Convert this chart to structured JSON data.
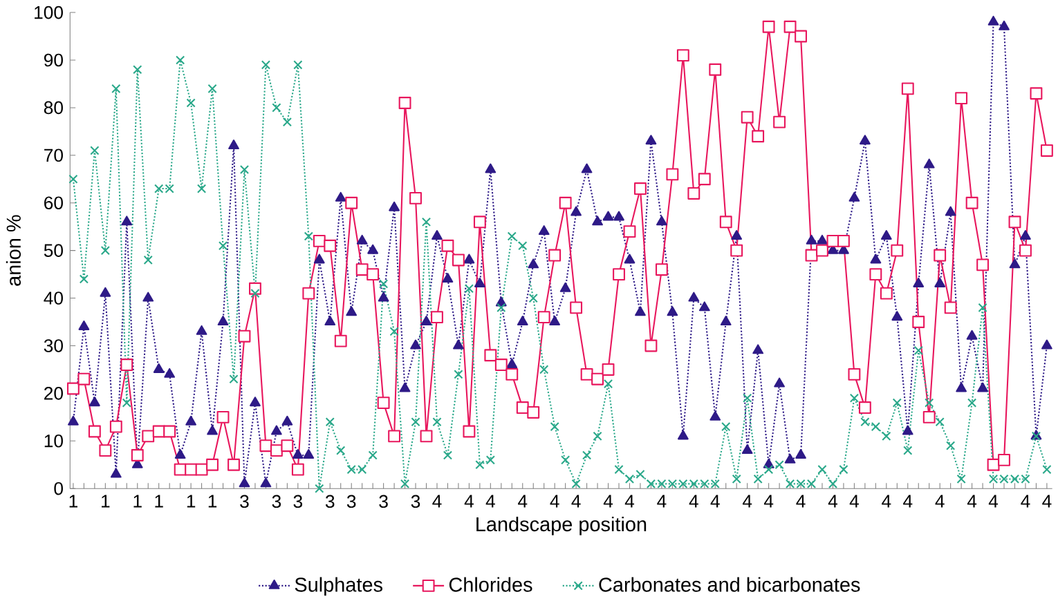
{
  "chart_data": {
    "type": "line",
    "xlabel": "Landscape position",
    "ylabel": "anion %",
    "ylim": [
      0,
      100
    ],
    "yticks": [
      0,
      10,
      20,
      30,
      40,
      50,
      60,
      70,
      80,
      90,
      100
    ],
    "grid": false,
    "legend": "bottom",
    "categories": [
      "1",
      null,
      null,
      "1",
      null,
      null,
      "1",
      null,
      "1",
      null,
      null,
      "1",
      null,
      "1",
      null,
      null,
      "3",
      null,
      null,
      "3",
      null,
      "3",
      null,
      null,
      "3",
      null,
      "3",
      null,
      null,
      "3",
      null,
      null,
      "3",
      null,
      "4",
      null,
      null,
      "4",
      null,
      "4",
      null,
      null,
      "4",
      null,
      null,
      "4",
      null,
      "4",
      null,
      null,
      "4",
      null,
      "4",
      null,
      null,
      "4",
      null,
      null,
      "4",
      null,
      "4",
      null,
      null,
      "4",
      null,
      "4",
      null,
      null,
      "4",
      null,
      null,
      "4",
      null,
      "4",
      null,
      null,
      "4",
      null,
      "4",
      null,
      null,
      "4",
      null,
      null,
      "4",
      null,
      "4",
      null,
      null,
      "4",
      null,
      "4"
    ],
    "series": [
      {
        "name": "Sulphates",
        "color": "#2e1a87",
        "marker": "triangle",
        "line_style": "dotted",
        "values": [
          14,
          34,
          18,
          41,
          3,
          56,
          5,
          40,
          25,
          24,
          7,
          14,
          33,
          12,
          35,
          72,
          1,
          18,
          1,
          12,
          14,
          7,
          7,
          48,
          35,
          61,
          37,
          52,
          50,
          40,
          59,
          21,
          30,
          35,
          53,
          44,
          30,
          48,
          43,
          67,
          39,
          26,
          35,
          47,
          54,
          35,
          42,
          58,
          67,
          56,
          57,
          57,
          48,
          37,
          73,
          56,
          37,
          11,
          40,
          38,
          15,
          35,
          53,
          8,
          29,
          5,
          22,
          6,
          7,
          52,
          52,
          50,
          50,
          61,
          73,
          48,
          53,
          36,
          12,
          43,
          68,
          43,
          58,
          21,
          32,
          21,
          98,
          97,
          47,
          53,
          11,
          30
        ]
      },
      {
        "name": "Chlorides",
        "color": "#e8175d",
        "marker": "square",
        "line_style": "solid",
        "values": [
          21,
          23,
          12,
          8,
          13,
          26,
          7,
          11,
          12,
          12,
          4,
          4,
          4,
          5,
          15,
          5,
          32,
          42,
          9,
          8,
          9,
          4,
          41,
          52,
          51,
          31,
          60,
          46,
          45,
          18,
          11,
          81,
          61,
          11,
          36,
          51,
          48,
          12,
          56,
          28,
          26,
          24,
          17,
          16,
          36,
          49,
          60,
          38,
          24,
          23,
          25,
          45,
          54,
          63,
          30,
          46,
          66,
          91,
          62,
          65,
          88,
          56,
          50,
          78,
          74,
          97,
          77,
          97,
          95,
          49,
          50,
          52,
          52,
          24,
          17,
          45,
          41,
          50,
          84,
          35,
          15,
          49,
          38,
          82,
          60,
          47,
          5,
          6,
          56,
          50,
          83,
          71
        ]
      },
      {
        "name": "Carbonates and bicarbonates",
        "color": "#2aa88a",
        "marker": "cross",
        "line_style": "dotted",
        "values": [
          65,
          44,
          71,
          50,
          84,
          18,
          88,
          48,
          63,
          63,
          90,
          81,
          63,
          84,
          51,
          23,
          67,
          41,
          89,
          80,
          77,
          89,
          53,
          0,
          14,
          8,
          4,
          4,
          7,
          43,
          33,
          1,
          14,
          56,
          14,
          7,
          24,
          42,
          5,
          6,
          38,
          53,
          51,
          40,
          25,
          13,
          6,
          1,
          7,
          11,
          22,
          4,
          2,
          3,
          1,
          1,
          1,
          1,
          1,
          1,
          1,
          13,
          2,
          19,
          2,
          4,
          5,
          1,
          1,
          1,
          4,
          1,
          4,
          19,
          14,
          13,
          11,
          18,
          8,
          29,
          18,
          14,
          9,
          2,
          18,
          38,
          2,
          2,
          2,
          2,
          11,
          4
        ]
      }
    ]
  }
}
